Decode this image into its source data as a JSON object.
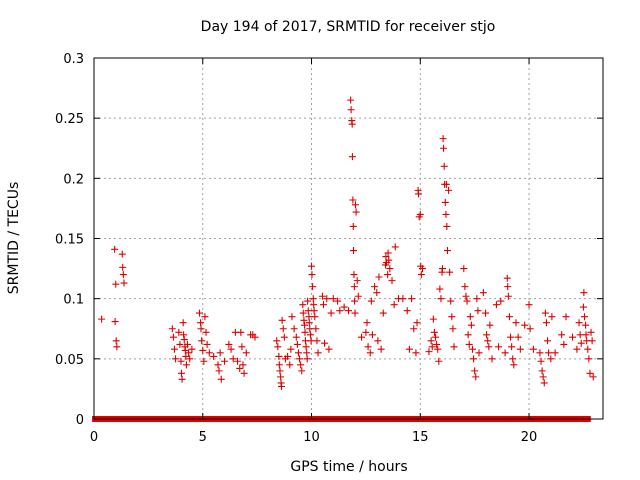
{
  "chart_data": {
    "type": "scatter",
    "title": "Day 194 of 2017, SRMTID for receiver stjo",
    "xlabel": "GPS time / hours",
    "ylabel": "SRMTID / TECUs",
    "xlim": [
      0,
      23.4
    ],
    "ylim": [
      0,
      0.3
    ],
    "x_ticks": [
      0,
      5,
      10,
      15,
      20
    ],
    "y_ticks": [
      0,
      0.05,
      0.1,
      0.15,
      0.2,
      0.25,
      0.3
    ],
    "x_tick_labels": [
      "0",
      "5",
      "10",
      "15",
      "20"
    ],
    "y_tick_labels": [
      "0",
      "0.05",
      "0.1",
      "0.15",
      "0.2",
      "0.25",
      "0.3"
    ],
    "grid": true,
    "marker": "+",
    "color": "#e00000",
    "zero_baseline_ranges": [
      [
        0.05,
        4.0
      ],
      [
        4.15,
        22.7
      ]
    ],
    "points": [
      [
        0.35,
        0.083
      ],
      [
        0.95,
        0.141
      ],
      [
        0.97,
        0.081
      ],
      [
        1.0,
        0.112
      ],
      [
        1.02,
        0.065
      ],
      [
        1.05,
        0.06
      ],
      [
        1.3,
        0.137
      ],
      [
        1.32,
        0.126
      ],
      [
        1.35,
        0.12
      ],
      [
        1.38,
        0.113
      ],
      [
        3.6,
        0.075
      ],
      [
        3.65,
        0.068
      ],
      [
        3.7,
        0.058
      ],
      [
        3.75,
        0.05
      ],
      [
        3.9,
        0.072
      ],
      [
        3.95,
        0.062
      ],
      [
        4.0,
        0.048
      ],
      [
        4.02,
        0.038
      ],
      [
        4.05,
        0.033
      ],
      [
        4.1,
        0.08
      ],
      [
        4.12,
        0.07
      ],
      [
        4.15,
        0.066
      ],
      [
        4.18,
        0.06
      ],
      [
        4.2,
        0.057
      ],
      [
        4.22,
        0.052
      ],
      [
        4.25,
        0.045
      ],
      [
        4.3,
        0.062
      ],
      [
        4.35,
        0.055
      ],
      [
        4.4,
        0.05
      ],
      [
        4.5,
        0.058
      ],
      [
        4.85,
        0.088
      ],
      [
        4.9,
        0.08
      ],
      [
        4.92,
        0.075
      ],
      [
        4.95,
        0.065
      ],
      [
        5.0,
        0.057
      ],
      [
        5.05,
        0.048
      ],
      [
        5.1,
        0.085
      ],
      [
        5.15,
        0.072
      ],
      [
        5.2,
        0.062
      ],
      [
        5.3,
        0.055
      ],
      [
        5.5,
        0.052
      ],
      [
        5.7,
        0.045
      ],
      [
        5.75,
        0.04
      ],
      [
        5.8,
        0.055
      ],
      [
        5.85,
        0.033
      ],
      [
        6.0,
        0.048
      ],
      [
        6.2,
        0.062
      ],
      [
        6.3,
        0.058
      ],
      [
        6.4,
        0.05
      ],
      [
        6.5,
        0.072
      ],
      [
        6.6,
        0.048
      ],
      [
        6.7,
        0.042
      ],
      [
        6.75,
        0.072
      ],
      [
        6.8,
        0.06
      ],
      [
        6.85,
        0.045
      ],
      [
        6.9,
        0.038
      ],
      [
        7.0,
        0.055
      ],
      [
        7.2,
        0.07
      ],
      [
        7.3,
        0.07
      ],
      [
        7.4,
        0.068
      ],
      [
        8.4,
        0.065
      ],
      [
        8.45,
        0.06
      ],
      [
        8.5,
        0.052
      ],
      [
        8.52,
        0.045
      ],
      [
        8.55,
        0.04
      ],
      [
        8.58,
        0.035
      ],
      [
        8.6,
        0.03
      ],
      [
        8.62,
        0.027
      ],
      [
        8.65,
        0.082
      ],
      [
        8.7,
        0.075
      ],
      [
        8.75,
        0.068
      ],
      [
        8.8,
        0.05
      ],
      [
        8.9,
        0.052
      ],
      [
        9.0,
        0.045
      ],
      [
        9.05,
        0.058
      ],
      [
        9.1,
        0.085
      ],
      [
        9.2,
        0.075
      ],
      [
        9.3,
        0.068
      ],
      [
        9.35,
        0.062
      ],
      [
        9.4,
        0.055
      ],
      [
        9.45,
        0.05
      ],
      [
        9.5,
        0.045
      ],
      [
        9.55,
        0.04
      ],
      [
        9.6,
        0.095
      ],
      [
        9.62,
        0.088
      ],
      [
        9.65,
        0.082
      ],
      [
        9.68,
        0.078
      ],
      [
        9.7,
        0.072
      ],
      [
        9.72,
        0.065
      ],
      [
        9.75,
        0.06
      ],
      [
        9.78,
        0.055
      ],
      [
        9.8,
        0.05
      ],
      [
        9.82,
        0.098
      ],
      [
        9.85,
        0.09
      ],
      [
        9.88,
        0.085
      ],
      [
        9.9,
        0.08
      ],
      [
        9.92,
        0.075
      ],
      [
        9.95,
        0.07
      ],
      [
        9.98,
        0.065
      ],
      [
        10.0,
        0.127
      ],
      [
        10.02,
        0.12
      ],
      [
        10.05,
        0.11
      ],
      [
        10.08,
        0.1
      ],
      [
        10.1,
        0.095
      ],
      [
        10.12,
        0.09
      ],
      [
        10.15,
        0.085
      ],
      [
        10.2,
        0.075
      ],
      [
        10.25,
        0.065
      ],
      [
        10.3,
        0.055
      ],
      [
        10.5,
        0.102
      ],
      [
        10.55,
        0.095
      ],
      [
        10.6,
        0.063
      ],
      [
        10.7,
        0.1
      ],
      [
        10.8,
        0.058
      ],
      [
        10.9,
        0.088
      ],
      [
        11.0,
        0.1
      ],
      [
        11.2,
        0.098
      ],
      [
        11.3,
        0.09
      ],
      [
        11.5,
        0.093
      ],
      [
        11.7,
        0.09
      ],
      [
        11.8,
        0.265
      ],
      [
        11.82,
        0.257
      ],
      [
        11.85,
        0.248
      ],
      [
        11.87,
        0.245
      ],
      [
        11.88,
        0.218
      ],
      [
        11.9,
        0.182
      ],
      [
        11.92,
        0.16
      ],
      [
        11.93,
        0.14
      ],
      [
        11.95,
        0.12
      ],
      [
        11.97,
        0.11
      ],
      [
        11.98,
        0.098
      ],
      [
        12.0,
        0.088
      ],
      [
        12.02,
        0.178
      ],
      [
        12.05,
        0.172
      ],
      [
        12.1,
        0.115
      ],
      [
        12.15,
        0.102
      ],
      [
        12.3,
        0.068
      ],
      [
        12.5,
        0.072
      ],
      [
        12.55,
        0.08
      ],
      [
        12.6,
        0.06
      ],
      [
        12.7,
        0.055
      ],
      [
        12.75,
        0.098
      ],
      [
        12.8,
        0.07
      ],
      [
        12.9,
        0.11
      ],
      [
        13.0,
        0.105
      ],
      [
        13.05,
        0.065
      ],
      [
        13.1,
        0.118
      ],
      [
        13.2,
        0.058
      ],
      [
        13.3,
        0.088
      ],
      [
        13.4,
        0.128
      ],
      [
        13.42,
        0.135
      ],
      [
        13.45,
        0.13
      ],
      [
        13.5,
        0.12
      ],
      [
        13.52,
        0.138
      ],
      [
        13.55,
        0.132
      ],
      [
        13.6,
        0.125
      ],
      [
        13.7,
        0.115
      ],
      [
        13.8,
        0.095
      ],
      [
        13.85,
        0.143
      ],
      [
        14.0,
        0.1
      ],
      [
        14.2,
        0.1
      ],
      [
        14.4,
        0.09
      ],
      [
        14.5,
        0.058
      ],
      [
        14.6,
        0.1
      ],
      [
        14.7,
        0.075
      ],
      [
        14.8,
        0.055
      ],
      [
        14.85,
        0.08
      ],
      [
        14.9,
        0.19
      ],
      [
        14.92,
        0.187
      ],
      [
        14.95,
        0.168
      ],
      [
        15.0,
        0.17
      ],
      [
        15.02,
        0.127
      ],
      [
        15.05,
        0.12
      ],
      [
        15.1,
        0.125
      ],
      [
        15.4,
        0.056
      ],
      [
        15.5,
        0.065
      ],
      [
        15.55,
        0.06
      ],
      [
        15.6,
        0.083
      ],
      [
        15.65,
        0.072
      ],
      [
        15.7,
        0.068
      ],
      [
        15.75,
        0.062
      ],
      [
        15.8,
        0.058
      ],
      [
        15.85,
        0.048
      ],
      [
        15.9,
        0.108
      ],
      [
        15.95,
        0.1
      ],
      [
        16.0,
        0.122
      ],
      [
        16.02,
        0.125
      ],
      [
        16.05,
        0.233
      ],
      [
        16.07,
        0.225
      ],
      [
        16.1,
        0.21
      ],
      [
        16.12,
        0.195
      ],
      [
        16.15,
        0.18
      ],
      [
        16.18,
        0.17
      ],
      [
        16.2,
        0.195
      ],
      [
        16.22,
        0.16
      ],
      [
        16.25,
        0.14
      ],
      [
        16.3,
        0.19
      ],
      [
        16.35,
        0.122
      ],
      [
        16.4,
        0.098
      ],
      [
        16.45,
        0.085
      ],
      [
        16.5,
        0.075
      ],
      [
        16.55,
        0.06
      ],
      [
        17.0,
        0.125
      ],
      [
        17.05,
        0.11
      ],
      [
        17.1,
        0.102
      ],
      [
        17.15,
        0.098
      ],
      [
        17.2,
        0.07
      ],
      [
        17.25,
        0.062
      ],
      [
        17.3,
        0.085
      ],
      [
        17.35,
        0.078
      ],
      [
        17.4,
        0.058
      ],
      [
        17.45,
        0.05
      ],
      [
        17.5,
        0.04
      ],
      [
        17.55,
        0.035
      ],
      [
        17.6,
        0.1
      ],
      [
        17.65,
        0.09
      ],
      [
        17.7,
        0.055
      ],
      [
        17.9,
        0.105
      ],
      [
        18.0,
        0.088
      ],
      [
        18.05,
        0.07
      ],
      [
        18.1,
        0.065
      ],
      [
        18.15,
        0.06
      ],
      [
        18.2,
        0.078
      ],
      [
        18.3,
        0.05
      ],
      [
        18.5,
        0.095
      ],
      [
        18.6,
        0.06
      ],
      [
        18.7,
        0.098
      ],
      [
        18.9,
        0.055
      ],
      [
        19.0,
        0.117
      ],
      [
        19.02,
        0.11
      ],
      [
        19.05,
        0.102
      ],
      [
        19.1,
        0.085
      ],
      [
        19.15,
        0.068
      ],
      [
        19.2,
        0.06
      ],
      [
        19.25,
        0.05
      ],
      [
        19.3,
        0.045
      ],
      [
        19.4,
        0.08
      ],
      [
        19.5,
        0.068
      ],
      [
        19.6,
        0.058
      ],
      [
        19.8,
        0.078
      ],
      [
        20.0,
        0.095
      ],
      [
        20.05,
        0.075
      ],
      [
        20.2,
        0.058
      ],
      [
        20.5,
        0.055
      ],
      [
        20.55,
        0.048
      ],
      [
        20.6,
        0.04
      ],
      [
        20.65,
        0.035
      ],
      [
        20.7,
        0.03
      ],
      [
        20.75,
        0.088
      ],
      [
        20.8,
        0.08
      ],
      [
        20.85,
        0.065
      ],
      [
        20.9,
        0.055
      ],
      [
        21.0,
        0.05
      ],
      [
        21.05,
        0.085
      ],
      [
        21.2,
        0.055
      ],
      [
        21.5,
        0.07
      ],
      [
        21.6,
        0.062
      ],
      [
        21.7,
        0.085
      ],
      [
        22.0,
        0.068
      ],
      [
        22.2,
        0.058
      ],
      [
        22.3,
        0.08
      ],
      [
        22.35,
        0.07
      ],
      [
        22.4,
        0.063
      ],
      [
        22.5,
        0.093
      ],
      [
        22.52,
        0.105
      ],
      [
        22.55,
        0.085
      ],
      [
        22.6,
        0.078
      ],
      [
        22.62,
        0.07
      ],
      [
        22.65,
        0.065
      ],
      [
        22.7,
        0.058
      ],
      [
        22.75,
        0.05
      ],
      [
        22.8,
        0.038
      ],
      [
        22.85,
        0.072
      ],
      [
        22.9,
        0.065
      ],
      [
        22.95,
        0.035
      ]
    ]
  }
}
